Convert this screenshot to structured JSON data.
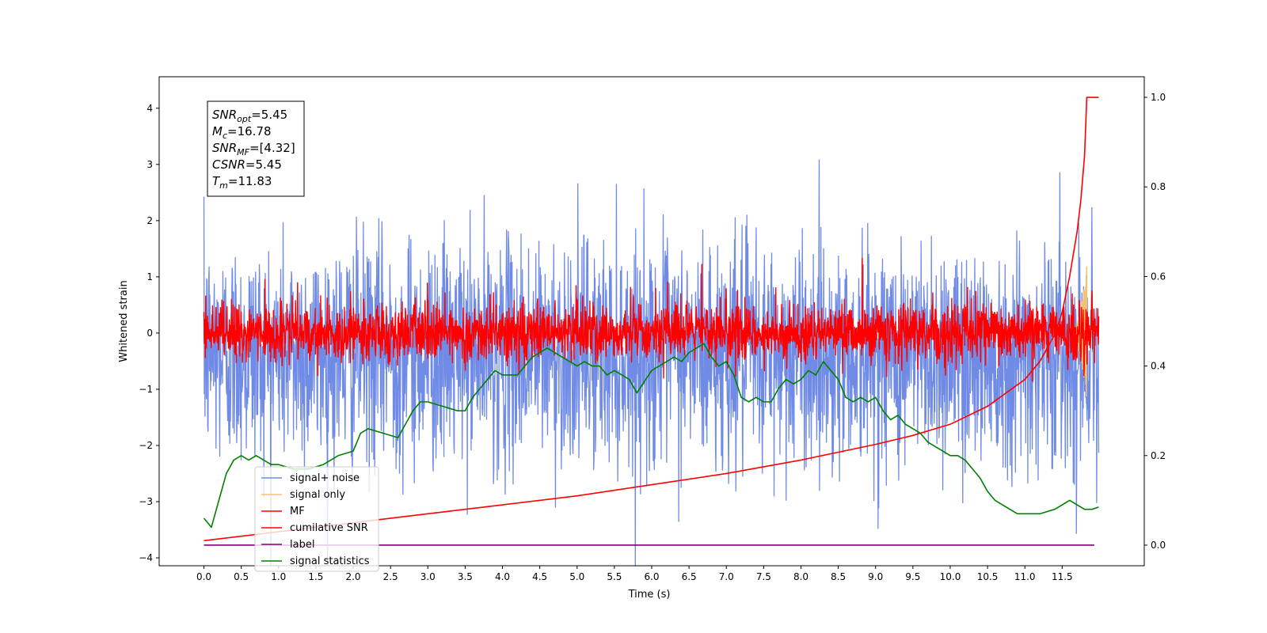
{
  "chart_data": {
    "type": "line",
    "xlabel": "Time (s)",
    "ylabel": "Whitened strain",
    "xlim": [
      -0.6,
      12.6
    ],
    "ylim": [
      -4.14,
      4.56
    ],
    "y2lim": [
      -0.046,
      1.046
    ],
    "x_ticks": [
      "0.0",
      "0.5",
      "1.0",
      "1.5",
      "2.0",
      "2.5",
      "3.0",
      "3.5",
      "4.0",
      "4.5",
      "5.0",
      "5.5",
      "6.0",
      "6.5",
      "7.0",
      "7.5",
      "8.0",
      "8.5",
      "9.0",
      "9.5",
      "10.0",
      "10.5",
      "11.0",
      "11.5"
    ],
    "y_ticks": [
      "−4",
      "−3",
      "−2",
      "−1",
      "0",
      "1",
      "2",
      "3",
      "4"
    ],
    "y2_ticks": [
      "0.0",
      "0.2",
      "0.4",
      "0.6",
      "0.8",
      "1.0"
    ],
    "grid": false,
    "legend_position": "lower-left",
    "annotation": [
      {
        "label": "SNR",
        "sub": "opt",
        "value": "=5.45"
      },
      {
        "label": "M",
        "sub": "c",
        "value": "=16.78"
      },
      {
        "label": "SNR",
        "sub": "MF",
        "value": "=[4.32]"
      },
      {
        "label": "CSNR",
        "sub": "",
        "value": "=5.45"
      },
      {
        "label": "T",
        "sub": "m",
        "value": "=11.83"
      }
    ],
    "series": [
      {
        "name": "signal+ noise",
        "color": "#6f8be6",
        "axis": "left",
        "kind": "noise",
        "mean": -0.35,
        "std": 1.0,
        "x_range": [
          0.0,
          11.99
        ]
      },
      {
        "name": "signal only",
        "color": "#f5c270",
        "axis": "left",
        "kind": "chirp",
        "t_merge": 11.83
      },
      {
        "name": "MF",
        "color": "#ff0000",
        "axis": "left",
        "kind": "noise",
        "mean": 0.0,
        "std": 0.25,
        "x_range": [
          0.0,
          11.99
        ]
      },
      {
        "name": "cumilative SNR",
        "color": "#ff0000",
        "axis": "right",
        "x": [
          0.0,
          1.0,
          2.0,
          3.0,
          4.0,
          5.0,
          6.0,
          7.0,
          8.0,
          9.0,
          9.5,
          10.0,
          10.5,
          11.0,
          11.2,
          11.4,
          11.5,
          11.6,
          11.7,
          11.75,
          11.8,
          11.83,
          11.99
        ],
        "y": [
          0.01,
          0.03,
          0.05,
          0.07,
          0.09,
          0.11,
          0.135,
          0.16,
          0.19,
          0.225,
          0.245,
          0.27,
          0.31,
          0.37,
          0.41,
          0.47,
          0.52,
          0.6,
          0.7,
          0.77,
          0.87,
          1.0,
          1.0
        ]
      },
      {
        "name": "label",
        "color": "#800080",
        "axis": "right",
        "x": [
          0.0,
          11.93
        ],
        "y": [
          0.0,
          0.0
        ]
      },
      {
        "name": "signal statistics",
        "color": "#008000",
        "axis": "right",
        "x": [
          0.0,
          0.1,
          0.2,
          0.3,
          0.4,
          0.5,
          0.6,
          0.7,
          0.8,
          0.9,
          1.0,
          1.2,
          1.4,
          1.6,
          1.8,
          2.0,
          2.1,
          2.2,
          2.4,
          2.6,
          2.8,
          2.9,
          3.0,
          3.2,
          3.4,
          3.5,
          3.6,
          3.7,
          3.8,
          3.9,
          4.0,
          4.2,
          4.3,
          4.4,
          4.5,
          4.6,
          4.7,
          4.8,
          5.0,
          5.1,
          5.2,
          5.3,
          5.4,
          5.5,
          5.6,
          5.7,
          5.8,
          6.0,
          6.2,
          6.3,
          6.4,
          6.5,
          6.6,
          6.7,
          6.8,
          6.9,
          7.0,
          7.1,
          7.2,
          7.3,
          7.4,
          7.5,
          7.6,
          7.7,
          7.8,
          7.9,
          8.0,
          8.1,
          8.2,
          8.3,
          8.4,
          8.5,
          8.6,
          8.7,
          8.8,
          8.9,
          9.0,
          9.1,
          9.2,
          9.3,
          9.4,
          9.5,
          9.6,
          9.7,
          9.8,
          9.9,
          10.0,
          10.1,
          10.2,
          10.3,
          10.4,
          10.5,
          10.6,
          10.7,
          10.8,
          10.9,
          11.0,
          11.2,
          11.4,
          11.5,
          11.6,
          11.7,
          11.8,
          11.9,
          11.99
        ],
        "y": [
          0.06,
          0.04,
          0.1,
          0.16,
          0.19,
          0.2,
          0.19,
          0.2,
          0.19,
          0.18,
          0.18,
          0.17,
          0.17,
          0.18,
          0.2,
          0.21,
          0.25,
          0.26,
          0.25,
          0.24,
          0.3,
          0.32,
          0.32,
          0.31,
          0.3,
          0.3,
          0.33,
          0.35,
          0.37,
          0.39,
          0.38,
          0.38,
          0.4,
          0.42,
          0.43,
          0.44,
          0.43,
          0.42,
          0.4,
          0.41,
          0.4,
          0.4,
          0.38,
          0.39,
          0.38,
          0.37,
          0.34,
          0.39,
          0.41,
          0.42,
          0.41,
          0.43,
          0.44,
          0.45,
          0.42,
          0.4,
          0.41,
          0.38,
          0.33,
          0.32,
          0.33,
          0.32,
          0.32,
          0.35,
          0.37,
          0.36,
          0.37,
          0.39,
          0.38,
          0.41,
          0.39,
          0.37,
          0.33,
          0.32,
          0.33,
          0.32,
          0.33,
          0.3,
          0.28,
          0.29,
          0.27,
          0.26,
          0.25,
          0.23,
          0.22,
          0.21,
          0.2,
          0.2,
          0.19,
          0.17,
          0.15,
          0.12,
          0.1,
          0.09,
          0.08,
          0.07,
          0.07,
          0.07,
          0.08,
          0.09,
          0.1,
          0.09,
          0.08,
          0.08,
          0.085
        ]
      }
    ]
  }
}
